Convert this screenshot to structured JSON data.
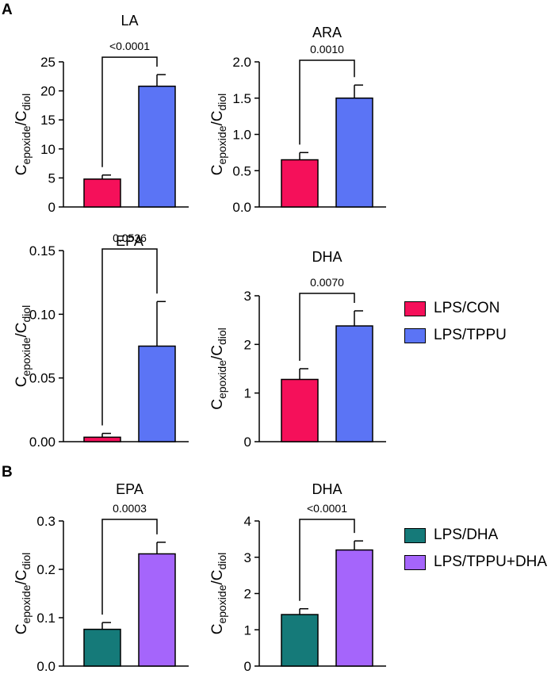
{
  "panels": [
    {
      "label": "A"
    },
    {
      "label": "B"
    }
  ],
  "ylabel_main": "C",
  "ylabel_sub_num": "epoxide",
  "ylabel_slash": "/C",
  "ylabel_sub_den": "diol",
  "legends": [
    {
      "items": [
        {
          "label": "LPS/CON",
          "color": "#f5105a"
        },
        {
          "label": "LPS/TPPU",
          "color": "#5b74f5"
        }
      ]
    },
    {
      "items": [
        {
          "label": "LPS/DHA",
          "color": "#157a79"
        },
        {
          "label": "LPS/TPPU+DHA",
          "color": "#a565fb"
        }
      ]
    }
  ],
  "chart_data": [
    {
      "type": "bar",
      "panel": "A",
      "title": "LA",
      "ylim": [
        0,
        25
      ],
      "yticks": [
        0,
        5,
        10,
        15,
        20,
        25
      ],
      "tick_labels": [
        "0",
        "5",
        "10",
        "15",
        "20",
        "25"
      ],
      "categories": [
        "LPS/CON",
        "LPS/TPPU"
      ],
      "values": [
        4.8,
        20.8
      ],
      "errors": [
        0.7,
        2.0
      ],
      "colors": [
        "#f5105a",
        "#5b74f5"
      ],
      "p_value": "<0.0001"
    },
    {
      "type": "bar",
      "panel": "A",
      "title": "ARA",
      "ylim": [
        0,
        2.0
      ],
      "yticks": [
        0,
        0.5,
        1.0,
        1.5,
        2.0
      ],
      "tick_labels": [
        "0.0",
        "0.5",
        "1.0",
        "1.5",
        "2.0"
      ],
      "categories": [
        "LPS/CON",
        "LPS/TPPU"
      ],
      "values": [
        0.65,
        1.5
      ],
      "errors": [
        0.1,
        0.18
      ],
      "colors": [
        "#f5105a",
        "#5b74f5"
      ],
      "p_value": "0.0010"
    },
    {
      "type": "bar",
      "panel": "A",
      "title": "EPA",
      "ylim": [
        0,
        0.15
      ],
      "yticks": [
        0,
        0.05,
        0.1,
        0.15
      ],
      "tick_labels": [
        "0.00",
        "0.05",
        "0.10",
        "0.15"
      ],
      "categories": [
        "LPS/CON",
        "LPS/TPPU"
      ],
      "values": [
        0.0035,
        0.075
      ],
      "errors": [
        0.003,
        0.035
      ],
      "colors": [
        "#f5105a",
        "#5b74f5"
      ],
      "p_value": "0.0536"
    },
    {
      "type": "bar",
      "panel": "A",
      "title": "DHA",
      "ylim": [
        0,
        3
      ],
      "yticks": [
        0,
        1,
        2,
        3
      ],
      "tick_labels": [
        "0",
        "1",
        "2",
        "3"
      ],
      "categories": [
        "LPS/CON",
        "LPS/TPPU"
      ],
      "values": [
        1.28,
        2.38
      ],
      "errors": [
        0.22,
        0.31
      ],
      "colors": [
        "#f5105a",
        "#5b74f5"
      ],
      "p_value": "0.0070"
    },
    {
      "type": "bar",
      "panel": "B",
      "title": "EPA",
      "ylim": [
        0,
        0.3
      ],
      "yticks": [
        0,
        0.1,
        0.2,
        0.3
      ],
      "tick_labels": [
        "0.0",
        "0.1",
        "0.2",
        "0.3"
      ],
      "categories": [
        "LPS/DHA",
        "LPS/TPPU+DHA"
      ],
      "values": [
        0.076,
        0.232
      ],
      "errors": [
        0.014,
        0.024
      ],
      "colors": [
        "#157a79",
        "#a565fb"
      ],
      "p_value": "0.0003"
    },
    {
      "type": "bar",
      "panel": "B",
      "title": "DHA",
      "ylim": [
        0,
        4
      ],
      "yticks": [
        0,
        1,
        2,
        3,
        4
      ],
      "tick_labels": [
        "0",
        "1",
        "2",
        "3",
        "4"
      ],
      "categories": [
        "LPS/DHA",
        "LPS/TPPU+DHA"
      ],
      "values": [
        1.42,
        3.2
      ],
      "errors": [
        0.16,
        0.25
      ],
      "colors": [
        "#157a79",
        "#a565fb"
      ],
      "p_value": "<0.0001"
    }
  ]
}
